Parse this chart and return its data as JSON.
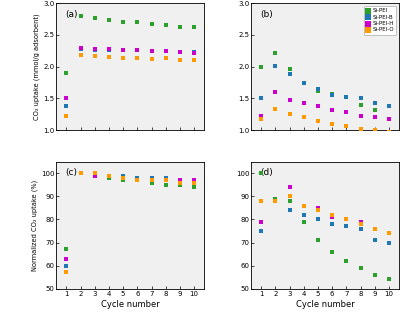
{
  "cycles": [
    1,
    2,
    3,
    4,
    5,
    6,
    7,
    8,
    9,
    10
  ],
  "colors": {
    "Si-PEI": "#2ca02c",
    "Si-PEI-B": "#1f77b4",
    "Si-PEI-H": "#cc00cc",
    "Si-PEI-O": "#ff9900"
  },
  "legend_labels": [
    "Si-PEI",
    "Si-PEI-B",
    "Si-PEI-H",
    "Si-PEI-O"
  ],
  "panel_a": {
    "Si-PEI": [
      1.9,
      2.8,
      2.76,
      2.73,
      2.71,
      2.7,
      2.68,
      2.65,
      2.63,
      2.63
    ],
    "Si-PEI-B": [
      1.38,
      2.28,
      2.27,
      2.27,
      2.27,
      2.26,
      2.25,
      2.25,
      2.23,
      2.23
    ],
    "Si-PEI-H": [
      1.5,
      2.3,
      2.28,
      2.28,
      2.27,
      2.26,
      2.25,
      2.24,
      2.23,
      2.22
    ],
    "Si-PEI-O": [
      1.22,
      2.18,
      2.17,
      2.16,
      2.14,
      2.13,
      2.12,
      2.13,
      2.1,
      2.1
    ]
  },
  "panel_b": {
    "Si-PEI": [
      2.0,
      2.22,
      1.97,
      1.75,
      1.62,
      1.57,
      1.52,
      1.4,
      1.32,
      1.38
    ],
    "Si-PEI-B": [
      1.5,
      2.01,
      1.88,
      1.75,
      1.65,
      1.55,
      1.52,
      1.5,
      1.42,
      1.38
    ],
    "Si-PEI-H": [
      1.23,
      1.6,
      1.48,
      1.42,
      1.38,
      1.32,
      1.28,
      1.22,
      1.2,
      1.18
    ],
    "Si-PEI-O": [
      1.17,
      1.33,
      1.25,
      1.2,
      1.15,
      1.1,
      1.07,
      1.02,
      1.0,
      0.97
    ]
  },
  "panel_c": {
    "Si-PEI": [
      67,
      100,
      99,
      98,
      97,
      97,
      96,
      95,
      95,
      94
    ],
    "Si-PEI-B": [
      60,
      100,
      99,
      99,
      99,
      98,
      98,
      98,
      97,
      97
    ],
    "Si-PEI-H": [
      63,
      100,
      99,
      99,
      98,
      97,
      97,
      97,
      97,
      97
    ],
    "Si-PEI-O": [
      57,
      100,
      100,
      99,
      98,
      97,
      97,
      97,
      96,
      96
    ]
  },
  "panel_d": {
    "Si-PEI": [
      100,
      89,
      88,
      79,
      71,
      66,
      62,
      59,
      56,
      54
    ],
    "Si-PEI-B": [
      75,
      88,
      84,
      82,
      80,
      78,
      77,
      76,
      71,
      70
    ],
    "Si-PEI-H": [
      79,
      88,
      94,
      86,
      85,
      81,
      80,
      79,
      76,
      74
    ],
    "Si-PEI-O": [
      88,
      88,
      90,
      86,
      84,
      82,
      80,
      78,
      76,
      74
    ]
  },
  "ylabel_ab": "CO₂ uptake (mmol/g adsorbent)",
  "ylabel_cd": "Normalized CO₂ uptake (%)",
  "xlabel": "Cycle number",
  "ylim_ab": [
    1.0,
    3.0
  ],
  "ylim_cd": [
    50,
    105
  ],
  "yticks_ab": [
    1.0,
    1.5,
    2.0,
    2.5,
    3.0
  ],
  "yticks_cd": [
    50,
    60,
    70,
    80,
    90,
    100
  ],
  "bg_color": "#f0f0f0"
}
